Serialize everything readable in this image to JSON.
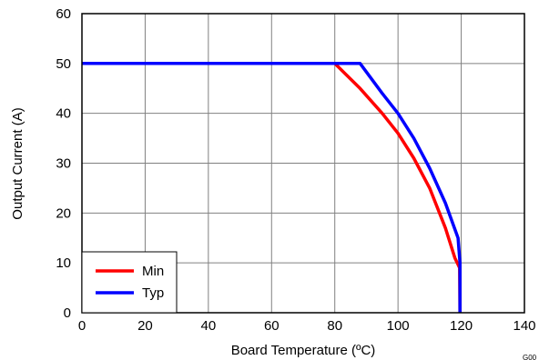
{
  "chart_data": {
    "type": "line",
    "title": "",
    "xlabel": "Board Temperature (ºC)",
    "ylabel": "Output Current (A)",
    "xlim": [
      0,
      140
    ],
    "ylim": [
      0,
      60
    ],
    "x_ticks": [
      "0",
      "20",
      "40",
      "60",
      "80",
      "100",
      "120",
      "140"
    ],
    "y_ticks": [
      "0",
      "10",
      "20",
      "30",
      "40",
      "50",
      "60"
    ],
    "grid": true,
    "legend_position": "bottom-left",
    "series": [
      {
        "name": "Min",
        "color": "#ff0000",
        "points": [
          [
            0,
            50
          ],
          [
            80,
            50
          ],
          [
            88,
            45
          ],
          [
            95,
            40
          ],
          [
            100,
            36
          ],
          [
            105,
            31
          ],
          [
            110,
            25
          ],
          [
            115,
            17
          ],
          [
            118,
            11
          ],
          [
            119.5,
            9
          ],
          [
            119.6,
            0
          ]
        ]
      },
      {
        "name": "Typ",
        "color": "#0000ff",
        "points": [
          [
            0,
            50
          ],
          [
            88,
            50
          ],
          [
            95,
            44
          ],
          [
            100,
            40
          ],
          [
            105,
            35
          ],
          [
            110,
            29
          ],
          [
            115,
            22
          ],
          [
            119,
            15
          ],
          [
            119.6,
            10
          ],
          [
            119.6,
            0
          ]
        ]
      }
    ],
    "figure_id": "G00"
  }
}
